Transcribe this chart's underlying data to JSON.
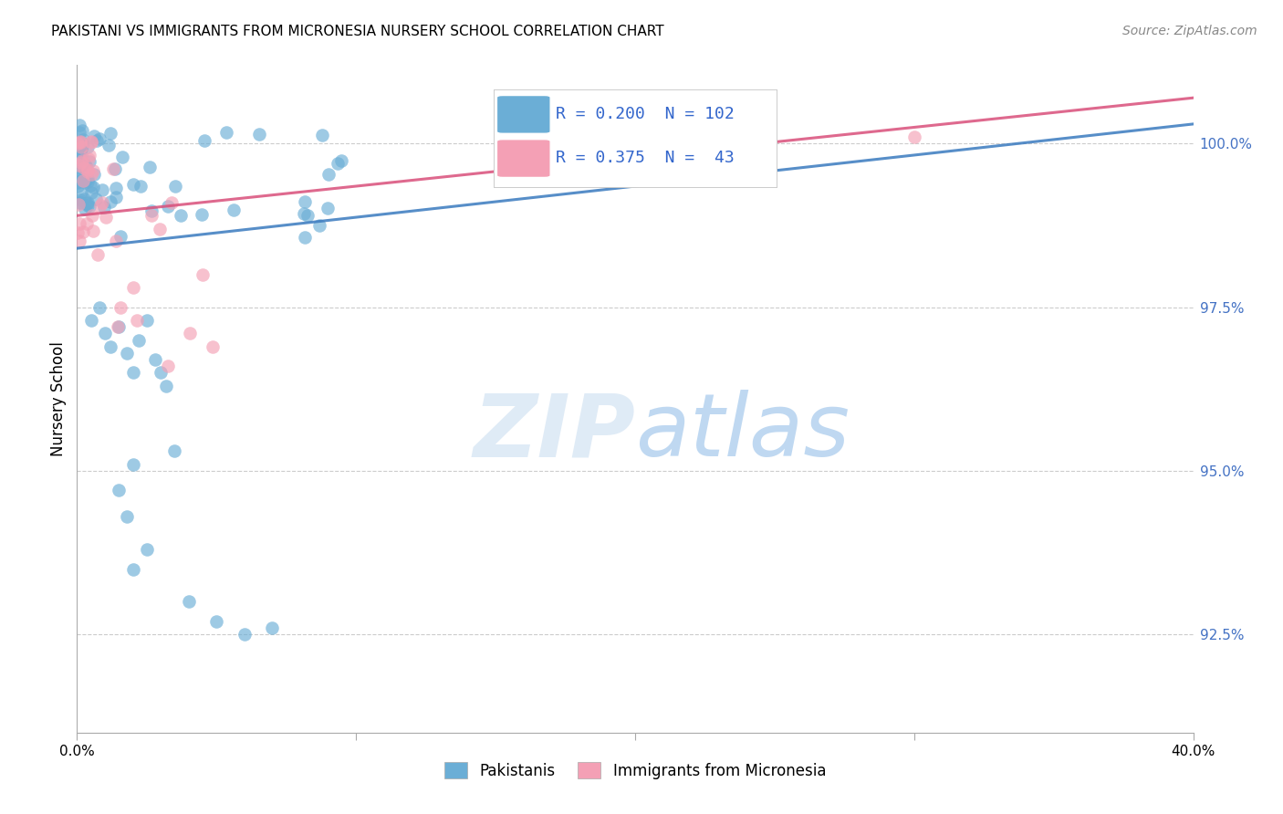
{
  "title": "PAKISTANI VS IMMIGRANTS FROM MICRONESIA NURSERY SCHOOL CORRELATION CHART",
  "source": "Source: ZipAtlas.com",
  "ylabel": "Nursery School",
  "ytick_values": [
    92.5,
    95.0,
    97.5,
    100.0
  ],
  "ytick_labels": [
    "92.5%",
    "95.0%",
    "97.5%",
    "100.0%"
  ],
  "xlim": [
    0.0,
    40.0
  ],
  "ylim": [
    91.0,
    101.2
  ],
  "pakistani_color": "#6baed6",
  "pakistani_line_color": "#3a7abf",
  "micronesia_color": "#f4a0b5",
  "micronesia_line_color": "#d94f7a",
  "pakistani_R": 0.2,
  "pakistani_N": 102,
  "micronesia_R": 0.375,
  "micronesia_N": 43,
  "legend_label_1": "Pakistanis",
  "legend_label_2": "Immigrants from Micronesia",
  "watermark_zip": "ZIP",
  "watermark_atlas": "atlas",
  "grid_color": "#cccccc",
  "background_color": "#ffffff",
  "title_fontsize": 11,
  "source_fontsize": 10,
  "ytick_fontsize": 11,
  "xtick_fontsize": 11
}
